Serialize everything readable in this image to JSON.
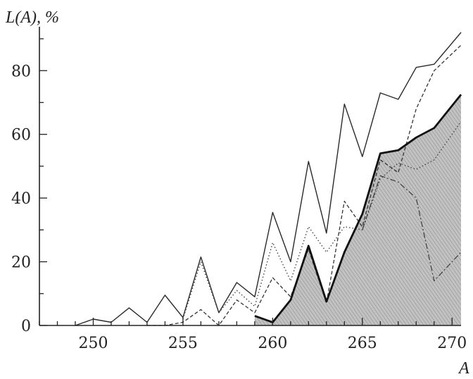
{
  "chart_data": {
    "type": "line",
    "title": "",
    "xlabel": "A",
    "ylabel": "L(A), %",
    "xlim": [
      247,
      270.5
    ],
    "ylim": [
      0,
      92
    ],
    "xticks": [
      250,
      255,
      260,
      265,
      270
    ],
    "yticks": [
      0,
      20,
      40,
      60,
      80
    ],
    "grid": false,
    "legend": "none",
    "series": [
      {
        "style": "solid",
        "x": [
          249,
          250,
          251,
          252,
          253,
          254,
          255,
          256,
          257,
          258,
          259,
          260,
          261,
          262,
          263,
          264,
          265,
          266,
          267,
          268,
          269,
          270.5
        ],
        "values": [
          0,
          2,
          1,
          5.5,
          1,
          9.5,
          2.5,
          21.5,
          4,
          13.5,
          9,
          35.5,
          20,
          51.5,
          29,
          69.5,
          53,
          73,
          71,
          81,
          82,
          92
        ]
      },
      {
        "style": "dashed",
        "x": [
          253,
          254,
          255,
          256,
          257,
          258,
          259,
          260,
          261,
          262,
          263,
          264,
          265,
          266,
          267,
          268,
          269,
          270.5
        ],
        "values": [
          0,
          0,
          1,
          5,
          0,
          8,
          4,
          15,
          9,
          24,
          7,
          39,
          31,
          52,
          48,
          68,
          80,
          88
        ]
      },
      {
        "style": "dotted",
        "x": [
          255,
          256,
          257,
          258,
          259,
          260,
          261,
          262,
          263,
          264,
          265,
          266,
          267,
          268,
          269,
          270.5
        ],
        "values": [
          2,
          20,
          4,
          11,
          6,
          26,
          14,
          31,
          23,
          31,
          30,
          46,
          51,
          49,
          52,
          64
        ]
      },
      {
        "style": "dash-dot",
        "x": [
          265,
          266,
          267,
          268,
          269,
          270.5
        ],
        "values": [
          30,
          47,
          45,
          40,
          14,
          23
        ]
      },
      {
        "style": "thick-solid-filled",
        "x": [
          259,
          260,
          261,
          262,
          263,
          264,
          265,
          266,
          267,
          268,
          269,
          270.5
        ],
        "values": [
          3,
          1,
          8,
          25,
          7.5,
          23,
          35,
          54,
          55,
          59,
          62,
          72.5
        ]
      }
    ]
  }
}
